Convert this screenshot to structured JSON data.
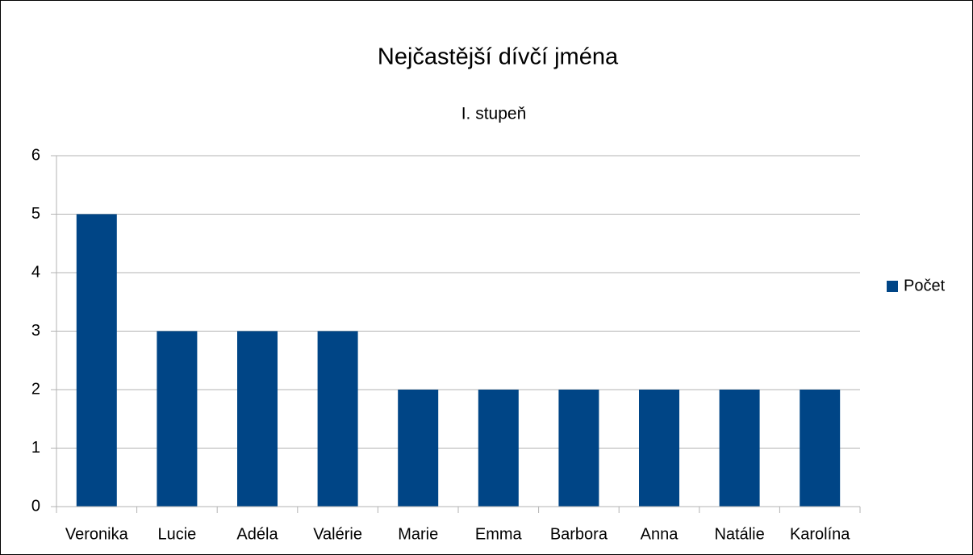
{
  "chart_data": {
    "type": "bar",
    "title": "Nejčastější dívčí jména",
    "subtitle": "I. stupeň",
    "categories": [
      "Veronika",
      "Lucie",
      "Adéla",
      "Valérie",
      "Marie",
      "Emma",
      "Barbora",
      "Anna",
      "Natálie",
      "Karolína"
    ],
    "series": [
      {
        "name": "Počet",
        "color": "#004586",
        "values": [
          5,
          3,
          3,
          3,
          2,
          2,
          2,
          2,
          2,
          2
        ]
      }
    ],
    "ylim": [
      0,
      6
    ],
    "yticks": [
      0,
      1,
      2,
      3,
      4,
      5,
      6
    ],
    "grid": true,
    "legend": "right"
  }
}
